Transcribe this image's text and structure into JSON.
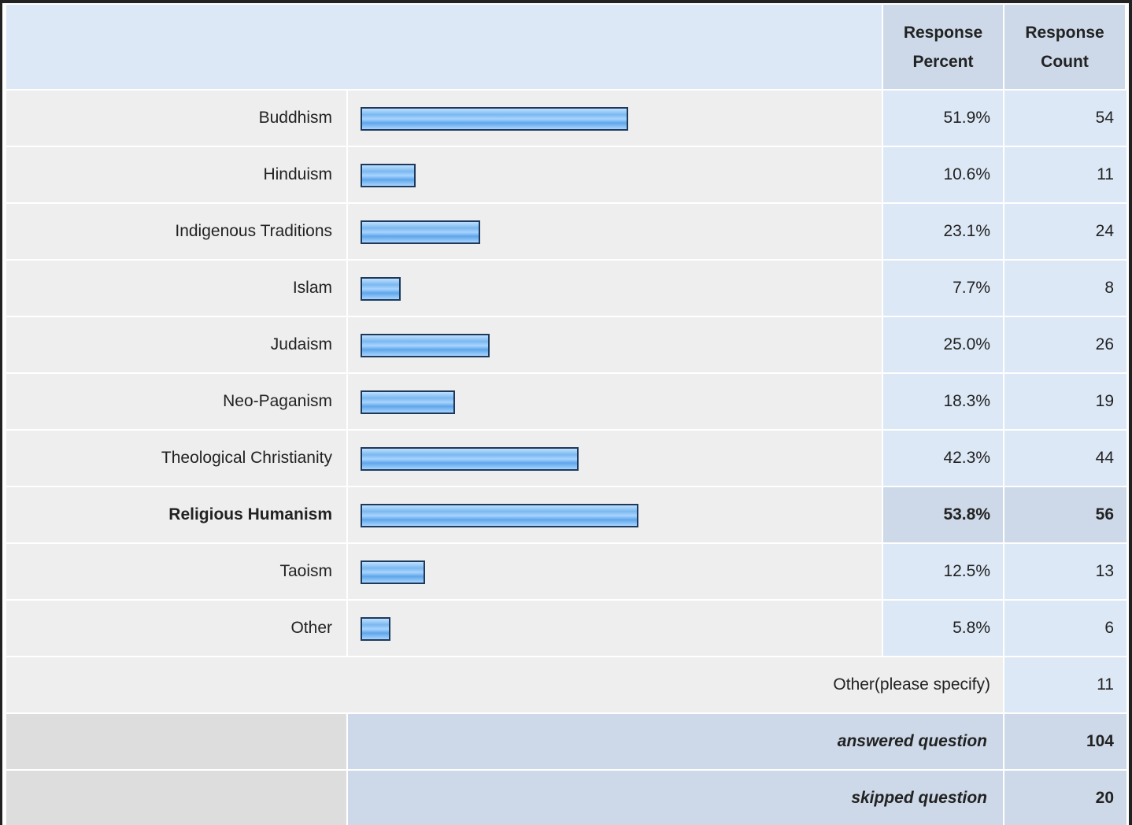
{
  "chart_data": {
    "type": "bar",
    "header": [
      "Response Percent",
      "Response Count"
    ],
    "categories": [
      "Buddhism",
      "Hinduism",
      "Indigenous Traditions",
      "Islam",
      "Judaism",
      "Neo-Paganism",
      "Theological Christianity",
      "Religious Humanism",
      "Taoism",
      "Other"
    ],
    "values": [
      51.9,
      10.6,
      23.1,
      7.7,
      25.0,
      18.3,
      42.3,
      53.8,
      12.5,
      5.8
    ],
    "value_labels": [
      "51.9%",
      "10.6%",
      "23.1%",
      "7.7%",
      "25.0%",
      "18.3%",
      "42.3%",
      "53.8%",
      "12.5%",
      "5.8%"
    ],
    "counts": [
      54,
      11,
      24,
      8,
      26,
      19,
      44,
      56,
      13,
      6
    ],
    "highlight_index": 7,
    "other": {
      "label": "Other(please specify)",
      "count": 11
    },
    "answered": {
      "label": "answered question",
      "count": 104
    },
    "skipped": {
      "label": "skipped question",
      "count": 20
    }
  }
}
